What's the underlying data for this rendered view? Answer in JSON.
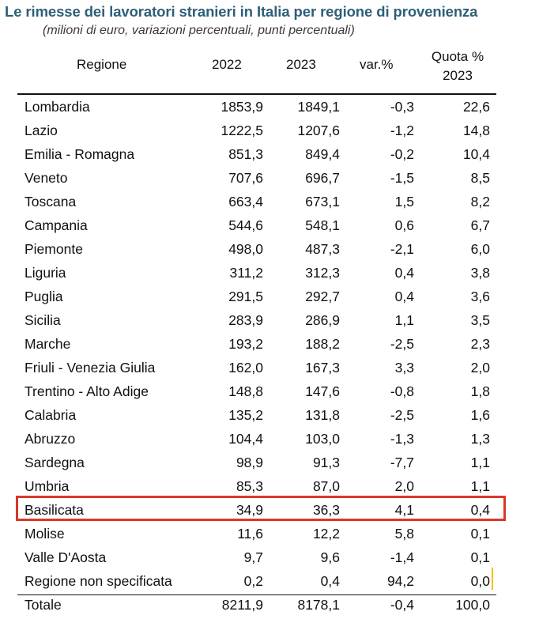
{
  "title": "Le rimesse dei lavoratori stranieri in Italia per regione di provenienza",
  "subtitle": "(milioni di euro, variazioni percentuali, punti percentuali)",
  "table": {
    "headers": {
      "region": "Regione",
      "y2022": "2022",
      "y2023": "2023",
      "var": "var.%",
      "quota_line1": "Quota %",
      "quota_line2": "2023"
    },
    "rows": [
      {
        "region": "Lombardia",
        "y2022": "1853,9",
        "y2023": "1849,1",
        "var": "-0,3",
        "quota": "22,6"
      },
      {
        "region": "Lazio",
        "y2022": "1222,5",
        "y2023": "1207,6",
        "var": "-1,2",
        "quota": "14,8"
      },
      {
        "region": "Emilia - Romagna",
        "y2022": "851,3",
        "y2023": "849,4",
        "var": "-0,2",
        "quota": "10,4"
      },
      {
        "region": "Veneto",
        "y2022": "707,6",
        "y2023": "696,7",
        "var": "-1,5",
        "quota": "8,5"
      },
      {
        "region": "Toscana",
        "y2022": "663,4",
        "y2023": "673,1",
        "var": "1,5",
        "quota": "8,2"
      },
      {
        "region": "Campania",
        "y2022": "544,6",
        "y2023": "548,1",
        "var": "0,6",
        "quota": "6,7"
      },
      {
        "region": "Piemonte",
        "y2022": "498,0",
        "y2023": "487,3",
        "var": "-2,1",
        "quota": "6,0"
      },
      {
        "region": "Liguria",
        "y2022": "311,2",
        "y2023": "312,3",
        "var": "0,4",
        "quota": "3,8"
      },
      {
        "region": "Puglia",
        "y2022": "291,5",
        "y2023": "292,7",
        "var": "0,4",
        "quota": "3,6"
      },
      {
        "region": "Sicilia",
        "y2022": "283,9",
        "y2023": "286,9",
        "var": "1,1",
        "quota": "3,5"
      },
      {
        "region": "Marche",
        "y2022": "193,2",
        "y2023": "188,2",
        "var": "-2,5",
        "quota": "2,3"
      },
      {
        "region": "Friuli - Venezia Giulia",
        "y2022": "162,0",
        "y2023": "167,3",
        "var": "3,3",
        "quota": "2,0"
      },
      {
        "region": "Trentino - Alto Adige",
        "y2022": "148,8",
        "y2023": "147,6",
        "var": "-0,8",
        "quota": "1,8"
      },
      {
        "region": "Calabria",
        "y2022": "135,2",
        "y2023": "131,8",
        "var": "-2,5",
        "quota": "1,6"
      },
      {
        "region": "Abruzzo",
        "y2022": "104,4",
        "y2023": "103,0",
        "var": "-1,3",
        "quota": "1,3"
      },
      {
        "region": "Sardegna",
        "y2022": "98,9",
        "y2023": "91,3",
        "var": "-7,7",
        "quota": "1,1"
      },
      {
        "region": "Umbria",
        "y2022": "85,3",
        "y2023": "87,0",
        "var": "2,0",
        "quota": "1,1"
      },
      {
        "region": "Basilicata",
        "y2022": "34,9",
        "y2023": "36,3",
        "var": "4,1",
        "quota": "0,4"
      },
      {
        "region": "Molise",
        "y2022": "11,6",
        "y2023": "12,2",
        "var": "5,8",
        "quota": "0,1"
      },
      {
        "region": "Valle D'Aosta",
        "y2022": "9,7",
        "y2023": "9,6",
        "var": "-1,4",
        "quota": "0,1"
      },
      {
        "region": "Regione non specificata",
        "y2022": "0,2",
        "y2023": "0,4",
        "var": "94,2",
        "quota": "0,0"
      },
      {
        "region": "Totale",
        "y2022": "8211,9",
        "y2023": "8178,1",
        "var": "-0,4",
        "quota": "100,0"
      }
    ],
    "highlighted_region": "Basilicata",
    "highlight_color": "#d9382a",
    "title_color": "#2e5f78"
  }
}
